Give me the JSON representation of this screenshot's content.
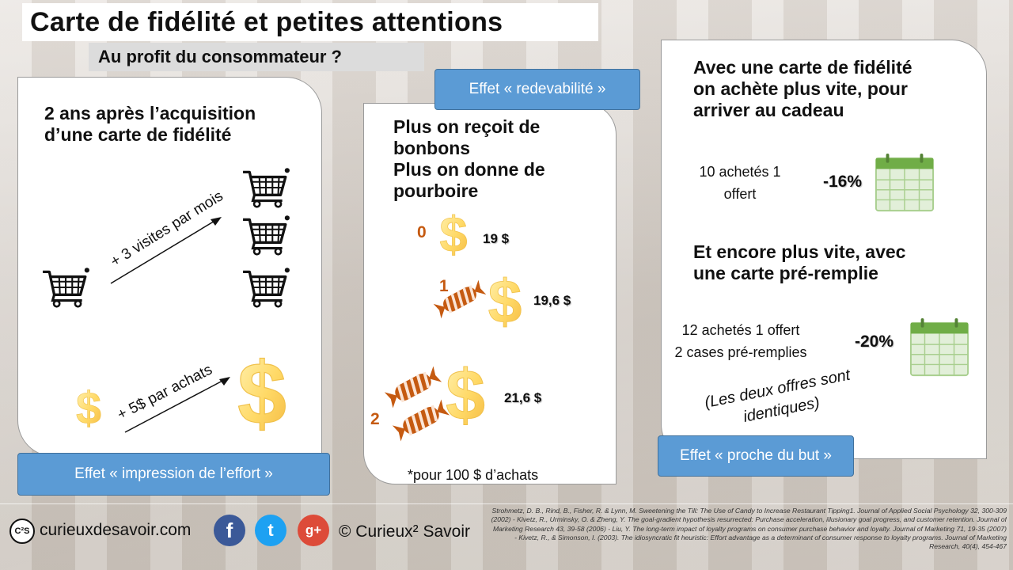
{
  "header": {
    "title": "Carte de fidélité et petites attentions",
    "subtitle": "Au profit du consommateur ?"
  },
  "left_panel": {
    "heading_line1": "2 ans après l’acquisition",
    "heading_line2": "d’une carte de fidélité",
    "visits_label": "+ 3 visites par mois",
    "purchase_label": "+ 5$ par achats",
    "effect": "Effet « impression de l’effort »"
  },
  "mid_panel": {
    "effect": "Effet « redevabilité »",
    "heading_line1": "Plus on reçoit de",
    "heading_line2": "bonbons",
    "heading_line3": "Plus on donne de",
    "heading_line4": "pourboire",
    "rows": [
      {
        "candies": "0",
        "tip": "19 $"
      },
      {
        "candies": "1",
        "tip": "19,6 $"
      },
      {
        "candies": "2",
        "tip": "21,6 $"
      }
    ],
    "note": "*pour 100 $ d’achats"
  },
  "right_panel": {
    "heading_line1": "Avec une carte de fidélité",
    "heading_line2": "on achète plus vite, pour",
    "heading_line3": "arriver au cadeau",
    "offer1_line1": "10 achetés 1",
    "offer1_line2": "offert",
    "offer1_pct": "-16%",
    "heading2_line1": "Et encore plus vite, avec",
    "heading2_line2": "une carte pré-remplie",
    "offer2_line1": "12 achetés 1 offert",
    "offer2_line2": "2 cases pré-remplies",
    "offer2_pct": "-20%",
    "aside_line1": "(Les deux offres sont",
    "aside_line2": "identiques)",
    "effect": "Effet « proche du but »"
  },
  "footer": {
    "site": "curieuxdesavoir.com",
    "logo_text": "C²S",
    "facebook": "f",
    "twitter": "t",
    "googleplus": "g+",
    "copyright": "© Curieux² Savoir",
    "references": "Strohmetz, D. B., Rind, B., Fisher, R. & Lynn, M. Sweetening the Till: The Use of Candy to Increase Restaurant Tipping1. Journal of Applied Social Psychology 32, 300-309 (2002) - Kivetz, R., Urminsky, O. & Zheng, Y. The goal-gradient hypothesis resurrected: Purchase acceleration, illusionary goal progress, and customer retention. Journal of Marketing Research 43, 39-58 (2006) - Liu, Y. The long-term impact of loyalty programs on consumer purchase behavior and loyalty. Journal of Marketing 71, 19-35 (2007) - Kivetz, R., & Simonson, I. (2003). The idiosyncratic fit heuristic: Effort advantage as a determinant of consumer response to loyalty programs. Journal of Marketing Research, 40(4), 454-467"
  },
  "colors": {
    "accent_blue": "#5b9bd5",
    "dollar_yellow": "#ffd966",
    "candy_orange": "#c55a11",
    "calendar_green": "#8fbc6a"
  },
  "icons": [
    "cart-icon",
    "dollar-icon",
    "candy-icon",
    "calendar-icon",
    "facebook-icon",
    "twitter-icon",
    "googleplus-icon"
  ]
}
